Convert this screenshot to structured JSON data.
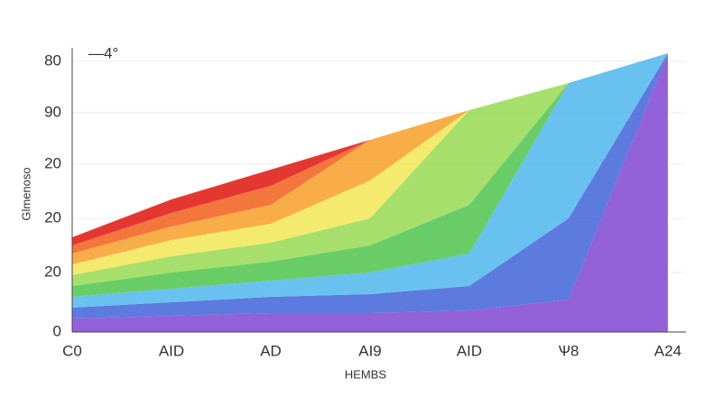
{
  "chart_data": {
    "type": "area",
    "annotation": "—4°",
    "x_label": "HEMBS",
    "y_label": "Glmenoso",
    "categories": [
      "C0",
      "AID",
      "AD",
      "AI9",
      "AID",
      "Ѱ8",
      "A24"
    ],
    "series": [
      {
        "color": "#8a55d6",
        "values": [
          5,
          6,
          7,
          7,
          8,
          12,
          103
        ]
      },
      {
        "color": "#4f6fdc",
        "values": [
          4,
          5,
          6,
          7,
          9,
          30,
          0
        ]
      },
      {
        "color": "#5cbcee",
        "values": [
          4,
          5,
          6,
          8,
          12,
          50,
          0
        ]
      },
      {
        "color": "#5cc95a",
        "values": [
          4,
          6,
          7,
          10,
          18,
          0,
          0
        ]
      },
      {
        "color": "#9edc5e",
        "values": [
          4,
          6,
          7,
          10,
          35,
          0,
          0
        ]
      },
      {
        "color": "#f2e862",
        "values": [
          4,
          6,
          7,
          14,
          0,
          0,
          0
        ]
      },
      {
        "color": "#f7a63a",
        "values": [
          4,
          5,
          7,
          15,
          0,
          0,
          0
        ]
      },
      {
        "color": "#f26a2c",
        "values": [
          3,
          5,
          7,
          0,
          0,
          0,
          0
        ]
      },
      {
        "color": "#e3261f",
        "values": [
          3,
          5,
          6,
          0,
          0,
          0,
          0
        ]
      }
    ],
    "ylim": [
      0,
      105
    ],
    "yticks": [
      0,
      {
        "value": 22,
        "label": "20"
      },
      {
        "value": 42,
        "label": "20"
      },
      {
        "value": 62,
        "label": "20"
      },
      {
        "value": 81,
        "label": "90"
      },
      {
        "value": 100,
        "label": "80"
      }
    ],
    "grid": true
  }
}
